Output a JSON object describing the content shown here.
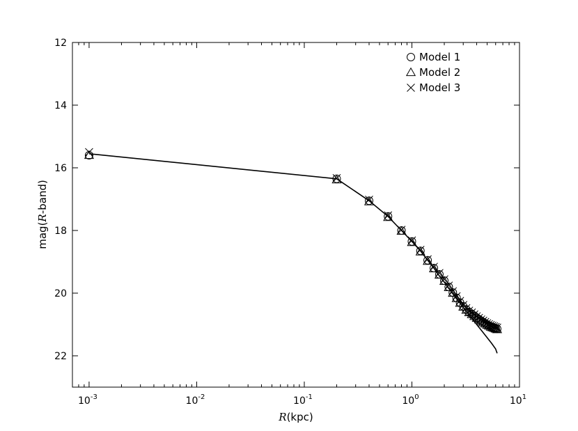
{
  "chart_data": {
    "type": "scatter",
    "xscale": "log",
    "xlim": [
      0.0007,
      10
    ],
    "ylim": [
      23,
      12
    ],
    "y_inverted": true,
    "xlabel": {
      "italic": "R",
      "rest": "(kpc)"
    },
    "ylabel": {
      "prefix": "mag(",
      "italic": "R",
      "suffix": "-band)"
    },
    "x_ticks": [
      {
        "value": 0.001,
        "base": "10",
        "exp": "-3"
      },
      {
        "value": 0.01,
        "base": "10",
        "exp": "-2"
      },
      {
        "value": 0.1,
        "base": "10",
        "exp": "-1"
      },
      {
        "value": 1,
        "base": "10",
        "exp": "0"
      },
      {
        "value": 10,
        "base": "10",
        "exp": "1"
      }
    ],
    "y_ticks": [
      12,
      14,
      16,
      18,
      20,
      22
    ],
    "grid": false,
    "legend_position": "top-right",
    "fit_line": {
      "x": [
        0.001,
        0.2,
        0.4,
        0.6,
        0.8,
        1.0,
        1.2,
        1.4,
        1.6,
        1.8,
        2.0,
        2.2,
        2.4,
        2.6,
        2.8,
        3.0,
        3.5,
        4.0,
        4.5,
        5.0,
        5.5,
        6.0,
        6.2
      ],
      "y": [
        15.55,
        16.35,
        17.05,
        17.55,
        18.0,
        18.35,
        18.65,
        18.95,
        19.2,
        19.45,
        19.65,
        19.85,
        20.02,
        20.18,
        20.32,
        20.46,
        20.75,
        21.0,
        21.22,
        21.42,
        21.6,
        21.78,
        21.92
      ]
    },
    "series": [
      {
        "name": "Model 1",
        "marker": "circle",
        "x": [
          0.001,
          0.2,
          0.4,
          0.6,
          0.8,
          1.0,
          1.2,
          1.4,
          1.6,
          1.8,
          2.0,
          2.2,
          2.4,
          2.6,
          2.8,
          3.0,
          3.2,
          3.4,
          3.6,
          3.8,
          4.0,
          4.2,
          4.4,
          4.6,
          4.8,
          5.0,
          5.2,
          5.4,
          5.6,
          5.8,
          6.0,
          6.2
        ],
        "y": [
          15.6,
          16.35,
          17.05,
          17.55,
          18.0,
          18.35,
          18.65,
          18.95,
          19.2,
          19.4,
          19.6,
          19.8,
          19.98,
          20.15,
          20.3,
          20.42,
          20.52,
          20.6,
          20.66,
          20.72,
          20.78,
          20.83,
          20.88,
          20.92,
          20.96,
          21.0,
          21.03,
          21.06,
          21.08,
          21.1,
          21.12,
          21.14
        ]
      },
      {
        "name": "Model 2",
        "marker": "triangle",
        "x": [
          0.001,
          0.2,
          0.4,
          0.6,
          0.8,
          1.0,
          1.2,
          1.4,
          1.6,
          1.8,
          2.0,
          2.2,
          2.4,
          2.6,
          2.8,
          3.0,
          3.2,
          3.4,
          3.6,
          3.8,
          4.0,
          4.2,
          4.4,
          4.6,
          4.8,
          5.0,
          5.2,
          5.4,
          5.6,
          5.8,
          6.0,
          6.2
        ],
        "y": [
          15.6,
          16.38,
          17.08,
          17.58,
          18.02,
          18.38,
          18.68,
          18.98,
          19.22,
          19.42,
          19.62,
          19.82,
          20.0,
          20.17,
          20.32,
          20.44,
          20.54,
          20.62,
          20.68,
          20.74,
          20.8,
          20.85,
          20.9,
          20.94,
          20.98,
          21.02,
          21.05,
          21.08,
          21.1,
          21.12,
          21.14,
          21.16
        ]
      },
      {
        "name": "Model 3",
        "marker": "x",
        "x": [
          0.001,
          0.2,
          0.4,
          0.6,
          0.8,
          1.0,
          1.2,
          1.4,
          1.6,
          1.8,
          2.0,
          2.2,
          2.4,
          2.6,
          2.8,
          3.0,
          3.2,
          3.4,
          3.6,
          3.8,
          4.0,
          4.2,
          4.4,
          4.6,
          4.8,
          5.0,
          5.2,
          5.4,
          5.6,
          5.8,
          6.0,
          6.2
        ],
        "y": [
          15.5,
          16.33,
          17.02,
          17.52,
          17.98,
          18.32,
          18.62,
          18.92,
          19.16,
          19.36,
          19.56,
          19.76,
          19.94,
          20.1,
          20.25,
          20.38,
          20.48,
          20.56,
          20.62,
          20.68,
          20.74,
          20.79,
          20.84,
          20.88,
          20.92,
          20.96,
          20.99,
          21.02,
          21.04,
          21.06,
          21.08,
          21.1
        ]
      }
    ]
  }
}
